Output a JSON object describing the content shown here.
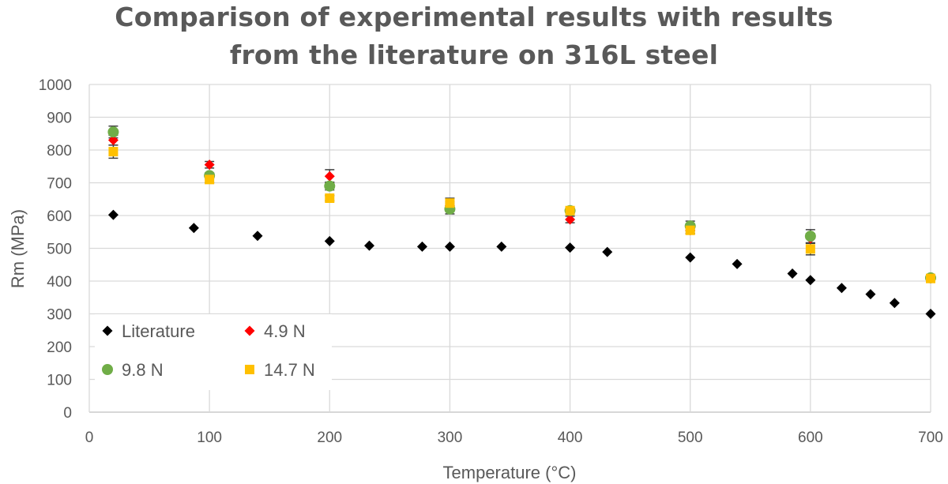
{
  "chart_data": {
    "type": "scatter",
    "title": [
      "Comparison of experimental results with results",
      "from the literature on 316L steel"
    ],
    "xlabel": "Temperature (°C)",
    "ylabel": "Rm (MPa)",
    "xlim": [
      0,
      700
    ],
    "ylim": [
      0,
      1000
    ],
    "xticks": [
      "0",
      "100",
      "200",
      "300",
      "400",
      "500",
      "600",
      "700"
    ],
    "yticks": [
      "0",
      "100",
      "200",
      "300",
      "400",
      "500",
      "600",
      "700",
      "800",
      "900",
      "1000"
    ],
    "grid": true,
    "legend_placement": "bottom-left",
    "series": [
      {
        "name": "Literature",
        "marker": "diamond",
        "color": "#000000",
        "points": [
          [
            20,
            602
          ],
          [
            87,
            562
          ],
          [
            140,
            538
          ],
          [
            200,
            522
          ],
          [
            233,
            508
          ],
          [
            277,
            505
          ],
          [
            300,
            505
          ],
          [
            343,
            505
          ],
          [
            400,
            502
          ],
          [
            431,
            489
          ],
          [
            500,
            472
          ],
          [
            539,
            452
          ],
          [
            585,
            423
          ],
          [
            600,
            403
          ],
          [
            626,
            379
          ],
          [
            650,
            360
          ],
          [
            670,
            333
          ],
          [
            700,
            300
          ]
        ]
      },
      {
        "name": "4.9 N",
        "marker": "diamond",
        "color": "#ff0000",
        "points": [
          [
            20,
            830,
            15
          ],
          [
            100,
            755,
            10
          ],
          [
            200,
            720,
            20
          ],
          [
            300,
            630,
            12
          ],
          [
            400,
            588,
            10
          ],
          [
            500,
            555,
            10
          ],
          [
            600,
            530,
            15
          ],
          [
            700,
            408,
            5
          ]
        ]
      },
      {
        "name": "9.8 N",
        "marker": "circle",
        "color": "#70ad47",
        "points": [
          [
            20,
            855,
            18
          ],
          [
            100,
            722,
            8
          ],
          [
            200,
            690,
            12
          ],
          [
            300,
            620,
            15
          ],
          [
            400,
            615,
            8
          ],
          [
            500,
            568,
            15
          ],
          [
            600,
            537,
            20
          ],
          [
            700,
            410,
            5
          ]
        ]
      },
      {
        "name": "14.7 N",
        "marker": "square",
        "color": "#ffc000",
        "points": [
          [
            20,
            795,
            20
          ],
          [
            100,
            710,
            10
          ],
          [
            200,
            653,
            8
          ],
          [
            300,
            638,
            15
          ],
          [
            400,
            615,
            8
          ],
          [
            500,
            555,
            10
          ],
          [
            600,
            498,
            18
          ],
          [
            700,
            408,
            5
          ]
        ]
      }
    ]
  }
}
